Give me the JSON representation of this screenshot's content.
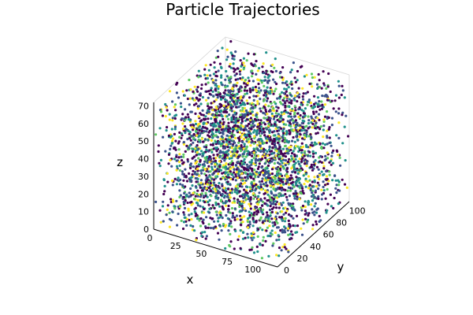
{
  "chart_data": {
    "type": "scatter3d",
    "title": "Particle Trajectories",
    "xlabel": "x",
    "ylabel": "y",
    "zlabel": "z",
    "xlim": [
      0,
      120
    ],
    "ylim": [
      0,
      110
    ],
    "zlim": [
      0,
      72
    ],
    "xticks": [
      "0",
      "25",
      "50",
      "75",
      "100"
    ],
    "yticks": [
      "0",
      "20",
      "40",
      "60",
      "80",
      "100"
    ],
    "zticks": [
      "0",
      "10",
      "20",
      "30",
      "40",
      "50",
      "60",
      "70"
    ],
    "legend": "none",
    "colormap": "viridis",
    "colors": [
      "#440154",
      "#3b528b",
      "#21918c",
      "#5ec962",
      "#fde725"
    ],
    "n_points": 3500
  }
}
